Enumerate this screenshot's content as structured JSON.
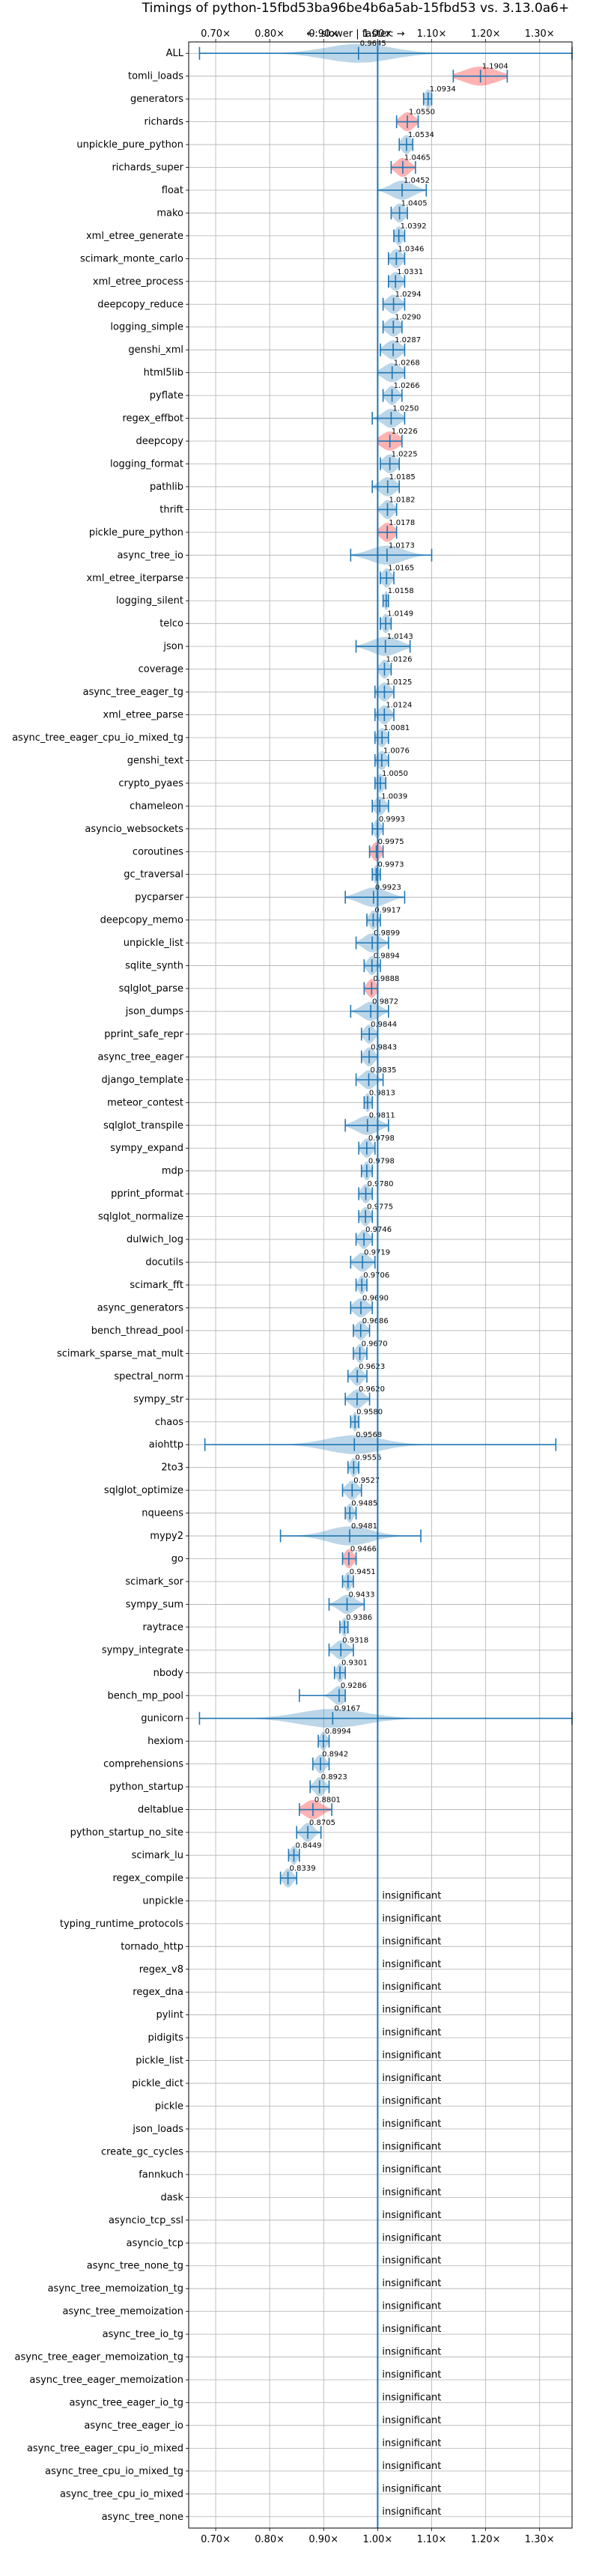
{
  "chart_data": {
    "type": "violin",
    "title": "Timings of python-15fbd53ba96be4b6a5ab-15fbd53 vs. 3.13.0a6+",
    "direction_note": "←: slower | faster: →",
    "xlim": [
      0.65,
      1.36
    ],
    "x_ticks": [
      0.7,
      0.8,
      0.9,
      1.0,
      1.1,
      1.2,
      1.3
    ],
    "x_tick_labels": [
      "0.70×",
      "0.80×",
      "0.90×",
      "1.00×",
      "1.10×",
      "1.20×",
      "1.30×"
    ],
    "grid": true,
    "reference_line": 1.0,
    "insignificant_label": "insignificant",
    "benchmarks": [
      {
        "name": "ALL",
        "value": "0.9645",
        "center": 0.9645,
        "lo": 0.67,
        "hi": 1.36,
        "color": "blue",
        "spread": 0.06
      },
      {
        "name": "tomli_loads",
        "value": "1.1904",
        "center": 1.1904,
        "lo": 1.14,
        "hi": 1.24,
        "color": "red",
        "spread": 0.03
      },
      {
        "name": "generators",
        "value": "1.0934",
        "center": 1.0934,
        "lo": 1.085,
        "hi": 1.1,
        "color": "blue",
        "spread": 0.006
      },
      {
        "name": "richards",
        "value": "1.0550",
        "center": 1.055,
        "lo": 1.035,
        "hi": 1.075,
        "color": "red",
        "spread": 0.012
      },
      {
        "name": "unpickle_pure_python",
        "value": "1.0534",
        "center": 1.0534,
        "lo": 1.04,
        "hi": 1.065,
        "color": "blue",
        "spread": 0.009
      },
      {
        "name": "richards_super",
        "value": "1.0465",
        "center": 1.0465,
        "lo": 1.025,
        "hi": 1.07,
        "color": "red",
        "spread": 0.012
      },
      {
        "name": "float",
        "value": "1.0452",
        "center": 1.0452,
        "lo": 1.0,
        "hi": 1.09,
        "color": "blue",
        "spread": 0.02
      },
      {
        "name": "mako",
        "value": "1.0405",
        "center": 1.0405,
        "lo": 1.025,
        "hi": 1.055,
        "color": "blue",
        "spread": 0.01
      },
      {
        "name": "xml_etree_generate",
        "value": "1.0392",
        "center": 1.0392,
        "lo": 1.03,
        "hi": 1.05,
        "color": "blue",
        "spread": 0.007
      },
      {
        "name": "scimark_monte_carlo",
        "value": "1.0346",
        "center": 1.0346,
        "lo": 1.02,
        "hi": 1.05,
        "color": "blue",
        "spread": 0.01
      },
      {
        "name": "xml_etree_process",
        "value": "1.0331",
        "center": 1.0331,
        "lo": 1.02,
        "hi": 1.05,
        "color": "blue",
        "spread": 0.01
      },
      {
        "name": "deepcopy_reduce",
        "value": "1.0294",
        "center": 1.0294,
        "lo": 1.01,
        "hi": 1.05,
        "color": "blue",
        "spread": 0.012
      },
      {
        "name": "logging_simple",
        "value": "1.0290",
        "center": 1.029,
        "lo": 1.01,
        "hi": 1.045,
        "color": "blue",
        "spread": 0.012
      },
      {
        "name": "genshi_xml",
        "value": "1.0287",
        "center": 1.0287,
        "lo": 1.005,
        "hi": 1.05,
        "color": "blue",
        "spread": 0.014
      },
      {
        "name": "html5lib",
        "value": "1.0268",
        "center": 1.0268,
        "lo": 1.0,
        "hi": 1.05,
        "color": "blue",
        "spread": 0.016
      },
      {
        "name": "pyflate",
        "value": "1.0266",
        "center": 1.0266,
        "lo": 1.01,
        "hi": 1.045,
        "color": "blue",
        "spread": 0.01
      },
      {
        "name": "regex_effbot",
        "value": "1.0250",
        "center": 1.025,
        "lo": 0.99,
        "hi": 1.05,
        "color": "blue",
        "spread": 0.015
      },
      {
        "name": "deepcopy",
        "value": "1.0226",
        "center": 1.0226,
        "lo": 1.0,
        "hi": 1.045,
        "color": "red",
        "spread": 0.016
      },
      {
        "name": "logging_format",
        "value": "1.0225",
        "center": 1.0225,
        "lo": 1.005,
        "hi": 1.04,
        "color": "blue",
        "spread": 0.012
      },
      {
        "name": "pathlib",
        "value": "1.0185",
        "center": 1.0185,
        "lo": 0.99,
        "hi": 1.04,
        "color": "blue",
        "spread": 0.014
      },
      {
        "name": "thrift",
        "value": "1.0182",
        "center": 1.0182,
        "lo": 1.0,
        "hi": 1.035,
        "color": "blue",
        "spread": 0.01
      },
      {
        "name": "pickle_pure_python",
        "value": "1.0178",
        "center": 1.0178,
        "lo": 1.0,
        "hi": 1.035,
        "color": "red",
        "spread": 0.012
      },
      {
        "name": "async_tree_io",
        "value": "1.0173",
        "center": 1.0173,
        "lo": 0.95,
        "hi": 1.1,
        "color": "blue",
        "spread": 0.03
      },
      {
        "name": "xml_etree_iterparse",
        "value": "1.0165",
        "center": 1.0165,
        "lo": 1.005,
        "hi": 1.03,
        "color": "blue",
        "spread": 0.008
      },
      {
        "name": "logging_silent",
        "value": "1.0158",
        "center": 1.0158,
        "lo": 1.01,
        "hi": 1.02,
        "color": "blue",
        "spread": 0.004
      },
      {
        "name": "telco",
        "value": "1.0149",
        "center": 1.0149,
        "lo": 1.005,
        "hi": 1.025,
        "color": "blue",
        "spread": 0.007
      },
      {
        "name": "json",
        "value": "1.0143",
        "center": 1.0143,
        "lo": 0.96,
        "hi": 1.06,
        "color": "blue",
        "spread": 0.025
      },
      {
        "name": "coverage",
        "value": "1.0126",
        "center": 1.0126,
        "lo": 1.0,
        "hi": 1.025,
        "color": "blue",
        "spread": 0.008
      },
      {
        "name": "async_tree_eager_tg",
        "value": "1.0125",
        "center": 1.0125,
        "lo": 0.995,
        "hi": 1.03,
        "color": "blue",
        "spread": 0.01
      },
      {
        "name": "xml_etree_parse",
        "value": "1.0124",
        "center": 1.0124,
        "lo": 0.995,
        "hi": 1.03,
        "color": "blue",
        "spread": 0.01
      },
      {
        "name": "async_tree_eager_cpu_io_mixed_tg",
        "value": "1.0081",
        "center": 1.0081,
        "lo": 0.995,
        "hi": 1.02,
        "color": "blue",
        "spread": 0.008
      },
      {
        "name": "genshi_text",
        "value": "1.0076",
        "center": 1.0076,
        "lo": 0.995,
        "hi": 1.02,
        "color": "blue",
        "spread": 0.008
      },
      {
        "name": "crypto_pyaes",
        "value": "1.0050",
        "center": 1.005,
        "lo": 0.995,
        "hi": 1.015,
        "color": "blue",
        "spread": 0.007
      },
      {
        "name": "chameleon",
        "value": "1.0039",
        "center": 1.0039,
        "lo": 0.99,
        "hi": 1.02,
        "color": "blue",
        "spread": 0.009
      },
      {
        "name": "asyncio_websockets",
        "value": "0.9993",
        "center": 0.9993,
        "lo": 0.99,
        "hi": 1.01,
        "color": "blue",
        "spread": 0.006
      },
      {
        "name": "coroutines",
        "value": "0.9975",
        "center": 0.9975,
        "lo": 0.985,
        "hi": 1.01,
        "color": "red",
        "spread": 0.008
      },
      {
        "name": "gc_traversal",
        "value": "0.9973",
        "center": 0.9973,
        "lo": 0.99,
        "hi": 1.005,
        "color": "blue",
        "spread": 0.005
      },
      {
        "name": "pycparser",
        "value": "0.9923",
        "center": 0.9923,
        "lo": 0.94,
        "hi": 1.05,
        "color": "blue",
        "spread": 0.025
      },
      {
        "name": "deepcopy_memo",
        "value": "0.9917",
        "center": 0.9917,
        "lo": 0.98,
        "hi": 1.005,
        "color": "blue",
        "spread": 0.007
      },
      {
        "name": "unpickle_list",
        "value": "0.9899",
        "center": 0.9899,
        "lo": 0.96,
        "hi": 1.02,
        "color": "blue",
        "spread": 0.015
      },
      {
        "name": "sqlite_synth",
        "value": "0.9894",
        "center": 0.9894,
        "lo": 0.975,
        "hi": 1.005,
        "color": "blue",
        "spread": 0.008
      },
      {
        "name": "sqlglot_parse",
        "value": "0.9888",
        "center": 0.9888,
        "lo": 0.975,
        "hi": 1.0,
        "color": "red",
        "spread": 0.008
      },
      {
        "name": "json_dumps",
        "value": "0.9872",
        "center": 0.9872,
        "lo": 0.95,
        "hi": 1.02,
        "color": "blue",
        "spread": 0.016
      },
      {
        "name": "pprint_safe_repr",
        "value": "0.9844",
        "center": 0.9844,
        "lo": 0.97,
        "hi": 1.0,
        "color": "blue",
        "spread": 0.009
      },
      {
        "name": "async_tree_eager",
        "value": "0.9843",
        "center": 0.9843,
        "lo": 0.97,
        "hi": 1.0,
        "color": "blue",
        "spread": 0.009
      },
      {
        "name": "django_template",
        "value": "0.9835",
        "center": 0.9835,
        "lo": 0.96,
        "hi": 1.01,
        "color": "blue",
        "spread": 0.012
      },
      {
        "name": "meteor_contest",
        "value": "0.9813",
        "center": 0.9813,
        "lo": 0.975,
        "hi": 0.99,
        "color": "blue",
        "spread": 0.005
      },
      {
        "name": "sqlglot_transpile",
        "value": "0.9811",
        "center": 0.9811,
        "lo": 0.94,
        "hi": 1.02,
        "color": "blue",
        "spread": 0.02
      },
      {
        "name": "sympy_expand",
        "value": "0.9798",
        "center": 0.9798,
        "lo": 0.965,
        "hi": 0.995,
        "color": "blue",
        "spread": 0.009
      },
      {
        "name": "mdp",
        "value": "0.9798",
        "center": 0.9798,
        "lo": 0.97,
        "hi": 0.99,
        "color": "blue",
        "spread": 0.006
      },
      {
        "name": "pprint_pformat",
        "value": "0.9780",
        "center": 0.978,
        "lo": 0.965,
        "hi": 0.99,
        "color": "blue",
        "spread": 0.008
      },
      {
        "name": "sqlglot_normalize",
        "value": "0.9775",
        "center": 0.9775,
        "lo": 0.965,
        "hi": 0.99,
        "color": "blue",
        "spread": 0.008
      },
      {
        "name": "dulwich_log",
        "value": "0.9746",
        "center": 0.9746,
        "lo": 0.96,
        "hi": 0.99,
        "color": "blue",
        "spread": 0.009
      },
      {
        "name": "docutils",
        "value": "0.9719",
        "center": 0.9719,
        "lo": 0.95,
        "hi": 0.995,
        "color": "blue",
        "spread": 0.012
      },
      {
        "name": "scimark_fft",
        "value": "0.9706",
        "center": 0.9706,
        "lo": 0.96,
        "hi": 0.98,
        "color": "blue",
        "spread": 0.006
      },
      {
        "name": "async_generators",
        "value": "0.9690",
        "center": 0.969,
        "lo": 0.95,
        "hi": 0.99,
        "color": "blue",
        "spread": 0.012
      },
      {
        "name": "bench_thread_pool",
        "value": "0.9686",
        "center": 0.9686,
        "lo": 0.955,
        "hi": 0.985,
        "color": "blue",
        "spread": 0.009
      },
      {
        "name": "scimark_sparse_mat_mult",
        "value": "0.9670",
        "center": 0.967,
        "lo": 0.955,
        "hi": 0.98,
        "color": "blue",
        "spread": 0.007
      },
      {
        "name": "spectral_norm",
        "value": "0.9623",
        "center": 0.9623,
        "lo": 0.945,
        "hi": 0.98,
        "color": "blue",
        "spread": 0.009
      },
      {
        "name": "sympy_str",
        "value": "0.9620",
        "center": 0.962,
        "lo": 0.94,
        "hi": 0.985,
        "color": "blue",
        "spread": 0.012
      },
      {
        "name": "chaos",
        "value": "0.9580",
        "center": 0.958,
        "lo": 0.95,
        "hi": 0.965,
        "color": "blue",
        "spread": 0.005
      },
      {
        "name": "aiohttp",
        "value": "0.9568",
        "center": 0.9568,
        "lo": 0.68,
        "hi": 1.33,
        "color": "blue",
        "spread": 0.05
      },
      {
        "name": "2to3",
        "value": "0.9556",
        "center": 0.9556,
        "lo": 0.945,
        "hi": 0.965,
        "color": "blue",
        "spread": 0.006
      },
      {
        "name": "sqlglot_optimize",
        "value": "0.9527",
        "center": 0.9527,
        "lo": 0.935,
        "hi": 0.97,
        "color": "blue",
        "spread": 0.01
      },
      {
        "name": "nqueens",
        "value": "0.9485",
        "center": 0.9485,
        "lo": 0.94,
        "hi": 0.96,
        "color": "blue",
        "spread": 0.006
      },
      {
        "name": "mypy2",
        "value": "0.9481",
        "center": 0.9481,
        "lo": 0.82,
        "hi": 1.08,
        "color": "blue",
        "spread": 0.04
      },
      {
        "name": "go",
        "value": "0.9466",
        "center": 0.9466,
        "lo": 0.935,
        "hi": 0.96,
        "color": "red",
        "spread": 0.008
      },
      {
        "name": "scimark_sor",
        "value": "0.9451",
        "center": 0.9451,
        "lo": 0.935,
        "hi": 0.955,
        "color": "blue",
        "spread": 0.006
      },
      {
        "name": "sympy_sum",
        "value": "0.9433",
        "center": 0.9433,
        "lo": 0.91,
        "hi": 0.975,
        "color": "blue",
        "spread": 0.015
      },
      {
        "name": "raytrace",
        "value": "0.9386",
        "center": 0.9386,
        "lo": 0.93,
        "hi": 0.945,
        "color": "blue",
        "spread": 0.005
      },
      {
        "name": "sympy_integrate",
        "value": "0.9318",
        "center": 0.9318,
        "lo": 0.91,
        "hi": 0.955,
        "color": "blue",
        "spread": 0.012
      },
      {
        "name": "nbody",
        "value": "0.9301",
        "center": 0.9301,
        "lo": 0.92,
        "hi": 0.94,
        "color": "blue",
        "spread": 0.006
      },
      {
        "name": "bench_mp_pool",
        "value": "0.9286",
        "center": 0.9286,
        "lo": 0.855,
        "hi": 0.94,
        "color": "blue",
        "spread": 0.012
      },
      {
        "name": "gunicorn",
        "value": "0.9167",
        "center": 0.9167,
        "lo": 0.67,
        "hi": 1.36,
        "color": "blue",
        "spread": 0.06
      },
      {
        "name": "hexiom",
        "value": "0.8994",
        "center": 0.8994,
        "lo": 0.89,
        "hi": 0.91,
        "color": "blue",
        "spread": 0.006
      },
      {
        "name": "comprehensions",
        "value": "0.8942",
        "center": 0.8942,
        "lo": 0.88,
        "hi": 0.91,
        "color": "blue",
        "spread": 0.008
      },
      {
        "name": "python_startup",
        "value": "0.8923",
        "center": 0.8923,
        "lo": 0.875,
        "hi": 0.91,
        "color": "blue",
        "spread": 0.009
      },
      {
        "name": "deltablue",
        "value": "0.8801",
        "center": 0.8801,
        "lo": 0.855,
        "hi": 0.915,
        "color": "red",
        "spread": 0.016
      },
      {
        "name": "python_startup_no_site",
        "value": "0.8705",
        "center": 0.8705,
        "lo": 0.85,
        "hi": 0.895,
        "color": "blue",
        "spread": 0.01
      },
      {
        "name": "scimark_lu",
        "value": "0.8449",
        "center": 0.8449,
        "lo": 0.835,
        "hi": 0.855,
        "color": "blue",
        "spread": 0.006
      },
      {
        "name": "regex_compile",
        "value": "0.8339",
        "center": 0.8339,
        "lo": 0.82,
        "hi": 0.85,
        "color": "blue",
        "spread": 0.008
      },
      {
        "name": "unpickle",
        "insignificant": true
      },
      {
        "name": "typing_runtime_protocols",
        "insignificant": true
      },
      {
        "name": "tornado_http",
        "insignificant": true
      },
      {
        "name": "regex_v8",
        "insignificant": true
      },
      {
        "name": "regex_dna",
        "insignificant": true
      },
      {
        "name": "pylint",
        "insignificant": true
      },
      {
        "name": "pidigits",
        "insignificant": true
      },
      {
        "name": "pickle_list",
        "insignificant": true
      },
      {
        "name": "pickle_dict",
        "insignificant": true
      },
      {
        "name": "pickle",
        "insignificant": true
      },
      {
        "name": "json_loads",
        "insignificant": true
      },
      {
        "name": "create_gc_cycles",
        "insignificant": true
      },
      {
        "name": "fannkuch",
        "insignificant": true
      },
      {
        "name": "dask",
        "insignificant": true
      },
      {
        "name": "asyncio_tcp_ssl",
        "insignificant": true
      },
      {
        "name": "asyncio_tcp",
        "insignificant": true
      },
      {
        "name": "async_tree_none_tg",
        "insignificant": true
      },
      {
        "name": "async_tree_memoization_tg",
        "insignificant": true
      },
      {
        "name": "async_tree_memoization",
        "insignificant": true
      },
      {
        "name": "async_tree_io_tg",
        "insignificant": true
      },
      {
        "name": "async_tree_eager_memoization_tg",
        "insignificant": true
      },
      {
        "name": "async_tree_eager_memoization",
        "insignificant": true
      },
      {
        "name": "async_tree_eager_io_tg",
        "insignificant": true
      },
      {
        "name": "async_tree_eager_io",
        "insignificant": true
      },
      {
        "name": "async_tree_eager_cpu_io_mixed",
        "insignificant": true
      },
      {
        "name": "async_tree_cpu_io_mixed_tg",
        "insignificant": true
      },
      {
        "name": "async_tree_cpu_io_mixed",
        "insignificant": true
      },
      {
        "name": "async_tree_none",
        "insignificant": true
      }
    ],
    "colors": {
      "line": "#1f77b4",
      "blue_fill": "#1f77b4",
      "red_fill": "#ff0000",
      "grid": "#b0b0b0",
      "text": "#000000"
    }
  }
}
